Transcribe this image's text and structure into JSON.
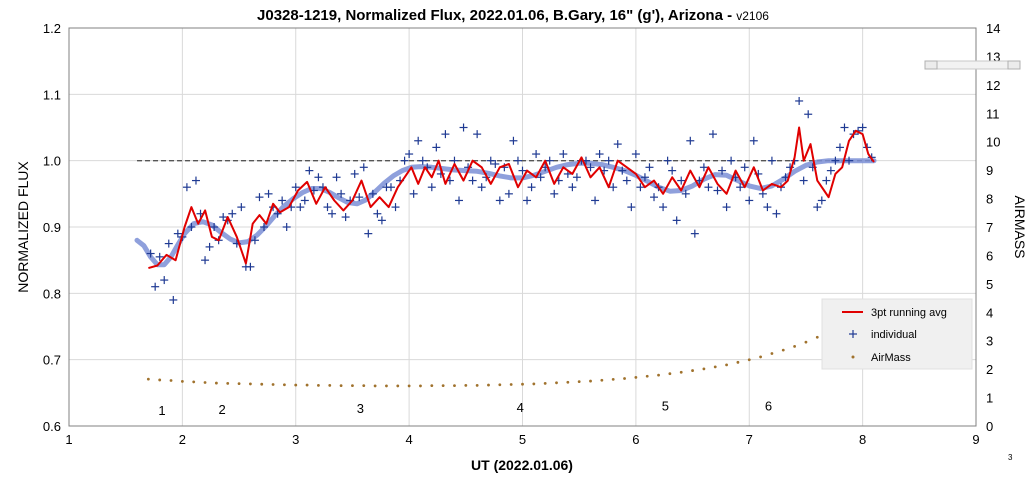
{
  "chart_data": {
    "type": "scatter",
    "title": "J0328-1219, Normalized Flux, 2022.01.06, B.Gary, 16\" (g'), Arizona - ",
    "title_version": "v2106",
    "xlabel": "UT (2022.01.06)",
    "ylabel": "NORMALIZED FLUX",
    "y2label": "AIRMASS",
    "xlim": [
      1,
      9
    ],
    "ylim": [
      0.6,
      1.2
    ],
    "y2lim": [
      0,
      14
    ],
    "x_ticks": [
      "1",
      "2",
      "3",
      "4",
      "5",
      "6",
      "7",
      "8",
      "9"
    ],
    "y_ticks": [
      "0.6",
      "0.7",
      "0.8",
      "0.9",
      "1.0",
      "1.1",
      "1.2"
    ],
    "y2_ticks": [
      "0",
      "1",
      "2",
      "3",
      "4",
      "5",
      "6",
      "7",
      "8",
      "9",
      "10",
      "11",
      "12",
      "13",
      "14"
    ],
    "grid": true,
    "legend_position": "lower-right",
    "reference_line": {
      "y": 1.0,
      "x": [
        1.6,
        8.1
      ],
      "style": "dashed"
    },
    "annotations": [
      {
        "text": "1",
        "x": 1.82,
        "y": 0.624
      },
      {
        "text": "2",
        "x": 2.35,
        "y": 0.626
      },
      {
        "text": "3",
        "x": 3.57,
        "y": 0.627
      },
      {
        "text": "4",
        "x": 4.98,
        "y": 0.629
      },
      {
        "text": "5",
        "x": 6.26,
        "y": 0.631
      },
      {
        "text": "6",
        "x": 7.17,
        "y": 0.631
      }
    ],
    "corner_mark": "3",
    "series": [
      {
        "name": "3pt running avg",
        "kind": "line",
        "color": "#e00000",
        "x": [
          1.7,
          1.78,
          1.86,
          1.94,
          2.02,
          2.08,
          2.14,
          2.2,
          2.26,
          2.32,
          2.4,
          2.48,
          2.56,
          2.62,
          2.68,
          2.74,
          2.8,
          2.86,
          2.94,
          3.02,
          3.1,
          3.18,
          3.26,
          3.34,
          3.42,
          3.5,
          3.58,
          3.66,
          3.74,
          3.82,
          3.9,
          3.96,
          4.02,
          4.08,
          4.14,
          4.2,
          4.26,
          4.32,
          4.4,
          4.48,
          4.56,
          4.64,
          4.72,
          4.8,
          4.88,
          4.96,
          5.04,
          5.12,
          5.2,
          5.28,
          5.36,
          5.44,
          5.52,
          5.6,
          5.68,
          5.76,
          5.84,
          5.92,
          6.0,
          6.08,
          6.16,
          6.24,
          6.32,
          6.4,
          6.48,
          6.56,
          6.64,
          6.72,
          6.8,
          6.88,
          6.96,
          7.04,
          7.12,
          7.2,
          7.28,
          7.34,
          7.4,
          7.44,
          7.48,
          7.54,
          7.6,
          7.66,
          7.7,
          7.76,
          7.82,
          7.88,
          7.94,
          8.0,
          8.05,
          8.1
        ],
        "y": [
          0.838,
          0.842,
          0.858,
          0.85,
          0.9,
          0.93,
          0.905,
          0.925,
          0.885,
          0.88,
          0.915,
          0.885,
          0.845,
          0.905,
          0.918,
          0.905,
          0.935,
          0.922,
          0.93,
          0.955,
          0.968,
          0.935,
          0.96,
          0.94,
          0.925,
          0.94,
          0.97,
          0.93,
          0.945,
          0.93,
          0.96,
          0.975,
          0.99,
          0.965,
          0.99,
          0.975,
          1.0,
          0.965,
          0.995,
          0.97,
          1.0,
          0.99,
          0.965,
          0.99,
          0.995,
          0.96,
          0.985,
          0.975,
          1.0,
          0.965,
          0.99,
          0.98,
          1.005,
          0.975,
          0.99,
          0.96,
          1.0,
          0.99,
          0.98,
          0.96,
          0.97,
          0.95,
          0.975,
          0.955,
          0.985,
          0.96,
          0.99,
          0.965,
          0.95,
          0.985,
          0.96,
          0.99,
          0.955,
          0.965,
          0.96,
          0.97,
          1.005,
          1.05,
          1.0,
          1.025,
          0.97,
          0.955,
          0.945,
          0.98,
          0.99,
          1.03,
          1.045,
          1.04,
          1.01,
          0.998
        ]
      },
      {
        "name": "individual",
        "kind": "markers",
        "marker": "+",
        "color": "#1f3a93",
        "x": [
          1.72,
          1.76,
          1.8,
          1.84,
          1.88,
          1.92,
          1.96,
          2.0,
          2.04,
          2.08,
          2.12,
          2.16,
          2.2,
          2.24,
          2.28,
          2.32,
          2.36,
          2.4,
          2.44,
          2.48,
          2.52,
          2.56,
          2.6,
          2.64,
          2.68,
          2.72,
          2.76,
          2.8,
          2.84,
          2.88,
          2.92,
          2.96,
          3.0,
          3.04,
          3.08,
          3.12,
          3.16,
          3.2,
          3.24,
          3.28,
          3.32,
          3.36,
          3.4,
          3.44,
          3.48,
          3.52,
          3.56,
          3.6,
          3.64,
          3.68,
          3.72,
          3.76,
          3.8,
          3.84,
          3.88,
          3.92,
          3.96,
          4.0,
          4.04,
          4.08,
          4.12,
          4.16,
          4.2,
          4.24,
          4.28,
          4.32,
          4.36,
          4.4,
          4.44,
          4.48,
          4.52,
          4.56,
          4.6,
          4.64,
          4.68,
          4.72,
          4.76,
          4.8,
          4.84,
          4.88,
          4.92,
          4.96,
          5.0,
          5.04,
          5.08,
          5.12,
          5.16,
          5.2,
          5.24,
          5.28,
          5.32,
          5.36,
          5.4,
          5.44,
          5.48,
          5.52,
          5.56,
          5.6,
          5.64,
          5.68,
          5.72,
          5.76,
          5.8,
          5.84,
          5.88,
          5.92,
          5.96,
          6.0,
          6.04,
          6.08,
          6.12,
          6.16,
          6.2,
          6.24,
          6.28,
          6.32,
          6.36,
          6.4,
          6.44,
          6.48,
          6.52,
          6.56,
          6.6,
          6.64,
          6.68,
          6.72,
          6.76,
          6.8,
          6.84,
          6.88,
          6.92,
          6.96,
          7.0,
          7.04,
          7.08,
          7.12,
          7.16,
          7.2,
          7.24,
          7.28,
          7.32,
          7.36,
          7.4,
          7.44,
          7.48,
          7.52,
          7.56,
          7.6,
          7.64,
          7.68,
          7.72,
          7.76,
          7.8,
          7.84,
          7.88,
          7.92,
          7.96,
          8.0,
          8.04,
          8.08
        ],
        "y": [
          0.86,
          0.81,
          0.855,
          0.82,
          0.875,
          0.79,
          0.89,
          0.885,
          0.96,
          0.9,
          0.97,
          0.92,
          0.85,
          0.87,
          0.9,
          0.88,
          0.915,
          0.91,
          0.92,
          0.875,
          0.93,
          0.84,
          0.84,
          0.88,
          0.945,
          0.9,
          0.95,
          0.93,
          0.92,
          0.94,
          0.9,
          0.93,
          0.96,
          0.93,
          0.94,
          0.985,
          0.955,
          0.975,
          0.96,
          0.93,
          0.92,
          0.975,
          0.95,
          0.915,
          0.94,
          0.98,
          0.945,
          0.99,
          0.89,
          0.95,
          0.92,
          0.91,
          0.96,
          0.96,
          0.93,
          0.97,
          1.0,
          1.01,
          0.95,
          1.03,
          1.0,
          0.99,
          0.96,
          1.02,
          0.98,
          1.04,
          0.97,
          1.0,
          0.94,
          1.05,
          0.99,
          0.97,
          1.04,
          0.96,
          0.975,
          1.0,
          0.995,
          0.94,
          0.99,
          0.95,
          1.03,
          1.0,
          0.985,
          0.94,
          0.96,
          1.01,
          0.975,
          0.99,
          1.0,
          0.95,
          0.97,
          1.01,
          0.98,
          0.96,
          0.975,
          1.0,
          1.0,
          0.99,
          0.94,
          1.01,
          0.985,
          1.0,
          0.96,
          1.025,
          0.985,
          0.97,
          0.93,
          1.01,
          0.96,
          0.975,
          0.99,
          0.945,
          0.96,
          0.93,
          1.0,
          0.985,
          0.91,
          0.97,
          0.95,
          1.03,
          0.89,
          0.97,
          0.99,
          0.96,
          1.04,
          0.955,
          0.985,
          0.93,
          1.0,
          0.975,
          0.96,
          0.99,
          0.94,
          1.03,
          0.98,
          0.95,
          0.93,
          1.0,
          0.92,
          0.96,
          0.975,
          0.99,
          1.0,
          1.09,
          0.97,
          1.07,
          0.99,
          0.93,
          0.94,
          0.97,
          0.985,
          1.0,
          1.02,
          1.05,
          1.0,
          1.04,
          1.045,
          1.05,
          1.02,
          1.005
        ]
      },
      {
        "name": "fit",
        "kind": "smooth",
        "color": "#7b8fd6",
        "x": [
          1.6,
          1.66,
          1.72,
          1.78,
          1.84,
          1.9,
          1.96,
          2.02,
          2.1,
          2.18,
          2.26,
          2.34,
          2.42,
          2.5,
          2.58,
          2.66,
          2.74,
          2.82,
          2.9,
          2.98,
          3.06,
          3.14,
          3.22,
          3.3,
          3.38,
          3.46,
          3.54,
          3.62,
          3.7,
          3.78,
          3.86,
          3.94,
          4.02,
          4.1,
          4.2,
          4.3,
          4.4,
          4.5,
          4.6,
          4.7,
          4.8,
          4.9,
          5.0,
          5.1,
          5.2,
          5.3,
          5.4,
          5.5,
          5.6,
          5.7,
          5.8,
          5.9,
          6.0,
          6.1,
          6.2,
          6.3,
          6.4,
          6.5,
          6.6,
          6.7,
          6.8,
          6.9,
          7.0,
          7.1,
          7.2,
          7.3,
          7.4,
          7.5,
          7.6,
          7.7,
          7.8,
          7.9,
          8.0,
          8.1
        ],
        "y": [
          0.88,
          0.872,
          0.855,
          0.843,
          0.843,
          0.855,
          0.873,
          0.89,
          0.905,
          0.908,
          0.903,
          0.892,
          0.882,
          0.876,
          0.878,
          0.888,
          0.902,
          0.918,
          0.932,
          0.943,
          0.952,
          0.958,
          0.958,
          0.952,
          0.944,
          0.937,
          0.935,
          0.941,
          0.953,
          0.966,
          0.977,
          0.985,
          0.99,
          0.991,
          0.99,
          0.988,
          0.986,
          0.985,
          0.984,
          0.981,
          0.977,
          0.974,
          0.974,
          0.978,
          0.984,
          0.99,
          0.994,
          0.996,
          0.996,
          0.994,
          0.99,
          0.985,
          0.978,
          0.969,
          0.96,
          0.954,
          0.955,
          0.962,
          0.972,
          0.979,
          0.978,
          0.97,
          0.962,
          0.958,
          0.962,
          0.972,
          0.984,
          0.993,
          0.998,
          1.0,
          1.0,
          1.0,
          1.0,
          1.0
        ]
      },
      {
        "name": "AirMass",
        "kind": "markers",
        "marker": "dot",
        "color": "#a0722d",
        "axis": "y2",
        "x": [
          1.7,
          1.8,
          1.9,
          2.0,
          2.1,
          2.2,
          2.3,
          2.4,
          2.5,
          2.6,
          2.7,
          2.8,
          2.9,
          3.0,
          3.1,
          3.2,
          3.3,
          3.4,
          3.5,
          3.6,
          3.7,
          3.8,
          3.9,
          4.0,
          4.1,
          4.2,
          4.3,
          4.4,
          4.5,
          4.6,
          4.7,
          4.8,
          4.9,
          5.0,
          5.1,
          5.2,
          5.3,
          5.4,
          5.5,
          5.6,
          5.7,
          5.8,
          5.9,
          6.0,
          6.1,
          6.2,
          6.3,
          6.4,
          6.5,
          6.6,
          6.7,
          6.8,
          6.9,
          7.0,
          7.1,
          7.2,
          7.3,
          7.4,
          7.5,
          7.6,
          7.7,
          7.8
        ],
        "y": [
          1.65,
          1.62,
          1.6,
          1.57,
          1.55,
          1.53,
          1.51,
          1.5,
          1.49,
          1.48,
          1.47,
          1.46,
          1.45,
          1.44,
          1.44,
          1.43,
          1.43,
          1.42,
          1.42,
          1.42,
          1.41,
          1.41,
          1.41,
          1.41,
          1.41,
          1.42,
          1.42,
          1.42,
          1.43,
          1.43,
          1.44,
          1.45,
          1.46,
          1.47,
          1.48,
          1.5,
          1.52,
          1.54,
          1.56,
          1.58,
          1.61,
          1.64,
          1.67,
          1.71,
          1.75,
          1.79,
          1.84,
          1.89,
          1.95,
          2.01,
          2.08,
          2.15,
          2.24,
          2.33,
          2.43,
          2.55,
          2.67,
          2.8,
          2.95,
          3.12,
          3.3,
          3.48
        ]
      }
    ]
  },
  "legend": {
    "items": [
      {
        "label": "3pt running avg"
      },
      {
        "label": "individual"
      },
      {
        "label": "AirMass"
      }
    ]
  }
}
